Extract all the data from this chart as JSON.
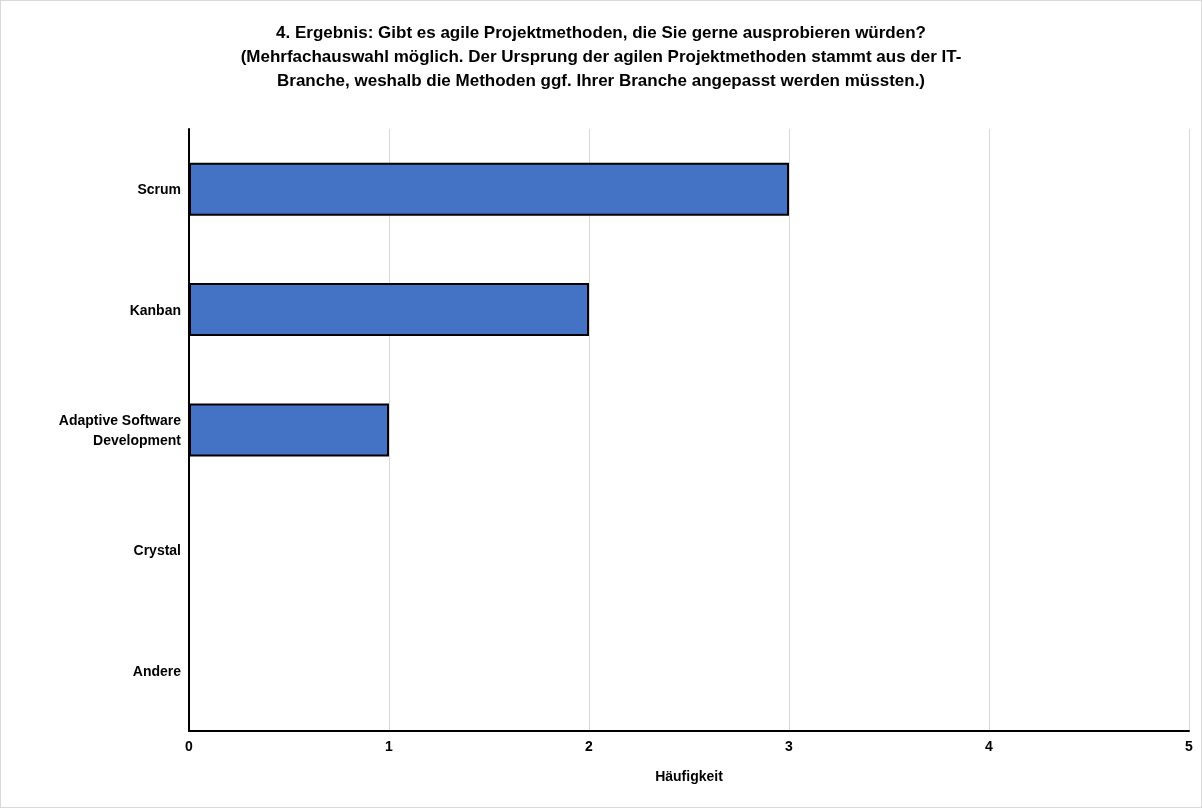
{
  "chart_data": {
    "type": "bar",
    "orientation": "horizontal",
    "title": "4. Ergebnis: Gibt es agile Projektmethoden, die Sie gerne ausprobieren würden?\n(Mehrfachauswahl möglich. Der Ursprung der agilen Projektmethoden stammt aus der IT-\nBranche, weshalb die Methoden ggf. Ihrer Branche angepasst werden müssten.)",
    "xlabel": "Häufigkeit",
    "categories": [
      "Scrum",
      "Kanban",
      "Adaptive Software\nDevelopment",
      "Crystal",
      "Andere"
    ],
    "values": [
      3,
      2,
      1,
      0,
      0
    ],
    "color": "#4472c4",
    "xlim": [
      0,
      5
    ],
    "xticks": [
      0,
      1,
      2,
      3,
      4,
      5
    ],
    "grid": "x"
  }
}
